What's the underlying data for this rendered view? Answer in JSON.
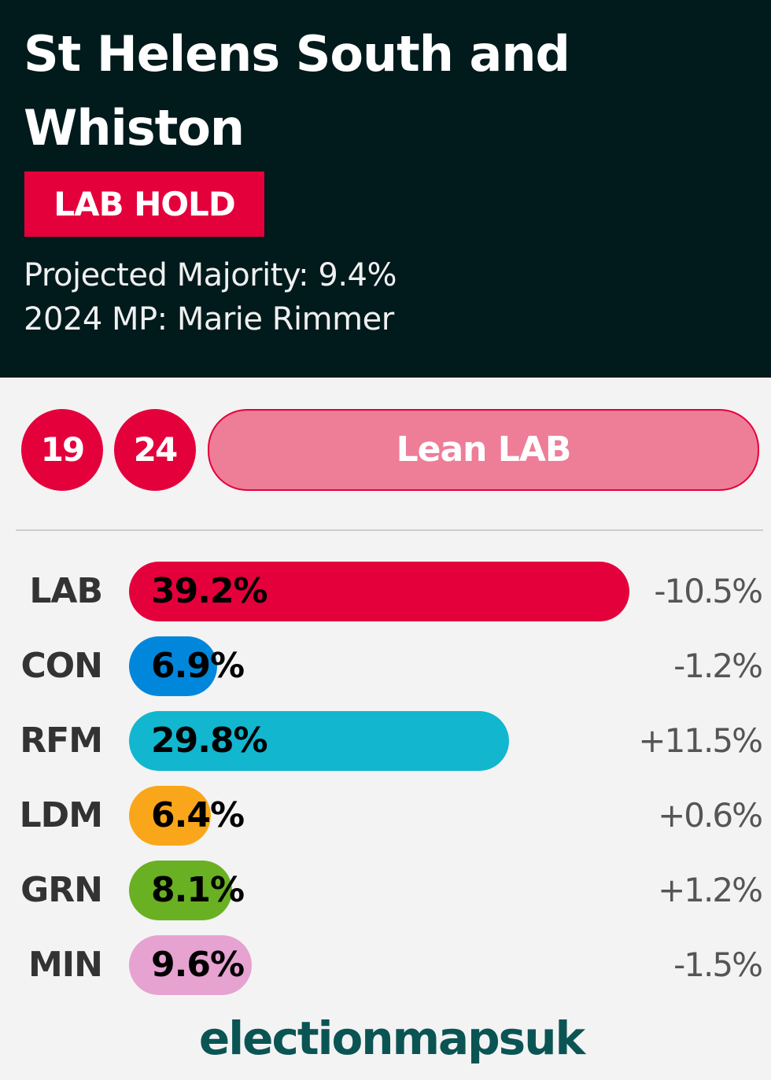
{
  "header": {
    "title": "St Helens South and Whiston",
    "result_badge": "LAB HOLD",
    "majority_line": "Projected Majority: 9.4%",
    "mp_line": "2024 MP: Marie Rimmer"
  },
  "history": {
    "years": [
      {
        "label": "19",
        "color": "#e4003b"
      },
      {
        "label": "24",
        "color": "#e4003b"
      }
    ],
    "rating": "Lean LAB",
    "rating_color": "#ee7d98"
  },
  "chart_data": {
    "type": "bar",
    "categories": [
      "LAB",
      "CON",
      "RFM",
      "LDM",
      "GRN",
      "MIN"
    ],
    "values": [
      39.2,
      6.9,
      29.8,
      6.4,
      8.1,
      9.6
    ],
    "value_labels": [
      "39.2%",
      "6.9%",
      "29.8%",
      "6.4%",
      "8.1%",
      "9.6%"
    ],
    "changes": [
      "-10.5%",
      "-1.2%",
      "+11.5%",
      "+0.6%",
      "+1.2%",
      "-1.5%"
    ],
    "colors": [
      "#e4003b",
      "#0087dc",
      "#12b6cf",
      "#faa61a",
      "#6ab023",
      "#e6a2d0"
    ],
    "xlim": [
      0,
      39.2
    ]
  },
  "footer": {
    "brand": "electionmapsuk"
  }
}
